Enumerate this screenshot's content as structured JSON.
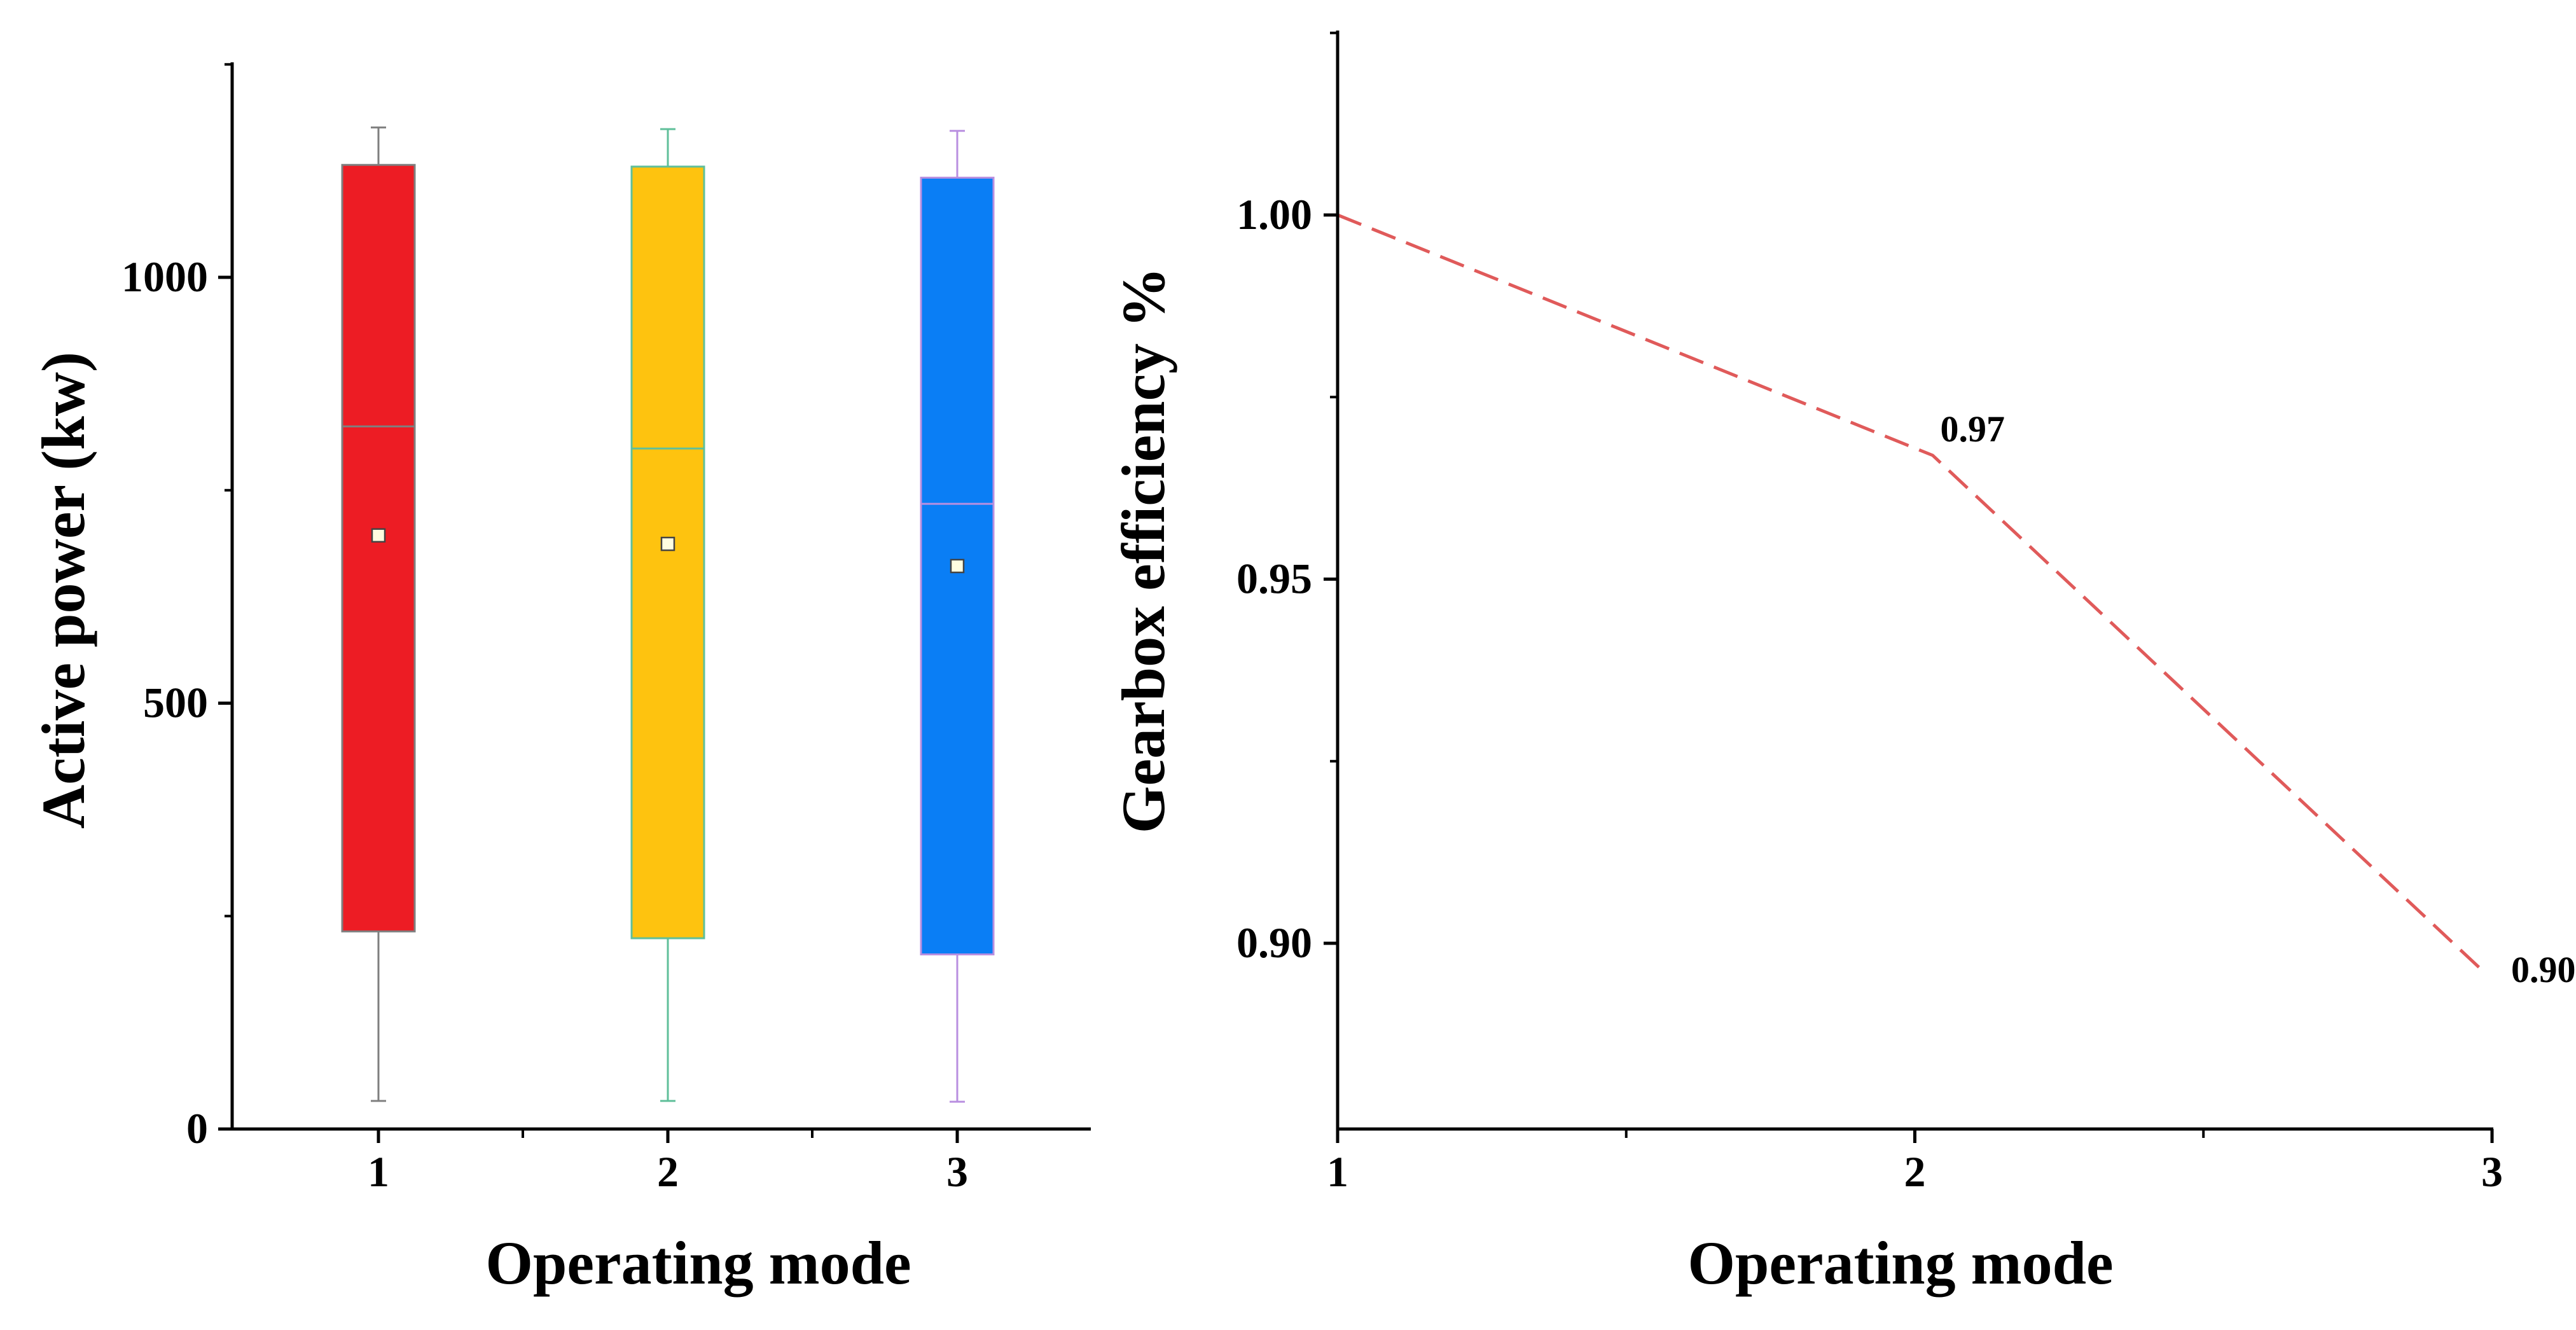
{
  "chart_data": [
    {
      "type": "box",
      "title": "",
      "xlabel": "Operating mode",
      "ylabel": "Active power (kw)",
      "categories": [
        "1",
        "2",
        "3"
      ],
      "ylim": [
        0,
        1260
      ],
      "yticks": [
        0,
        500,
        1000
      ],
      "yticklabels": [
        "0",
        "500",
        "1000"
      ],
      "boxes": [
        {
          "category": "1",
          "whisker_low": 33,
          "q1": 232,
          "median": 825,
          "q3": 1132,
          "whisker_high": 1176,
          "mean": 697,
          "fill": "#ed1c24",
          "edge": "#7f7f7f"
        },
        {
          "category": "2",
          "whisker_low": 33,
          "q1": 224,
          "median": 799,
          "q3": 1130,
          "whisker_high": 1174,
          "mean": 687,
          "fill": "#fec30f",
          "edge": "#5fbf9a"
        },
        {
          "category": "3",
          "whisker_low": 32,
          "q1": 205,
          "median": 734,
          "q3": 1117,
          "whisker_high": 1172,
          "mean": 661,
          "fill": "#0a7ef5",
          "edge": "#b98fe0"
        }
      ]
    },
    {
      "type": "line",
      "title": "",
      "xlabel": "Operating mode",
      "ylabel": "Gearbox efficiency %",
      "x": [
        1,
        2,
        3
      ],
      "xlim": [
        1,
        3
      ],
      "xticklabels": [
        "1",
        "2",
        "3"
      ],
      "ylim": [
        0.875,
        1.025
      ],
      "yticks": [
        0.9,
        0.95,
        1.0
      ],
      "yticklabels": [
        "0.90",
        "0.95",
        "1.00"
      ],
      "series": [
        {
          "name": "Gearbox efficiency",
          "values": [
            1.0,
            0.967,
            0.896
          ],
          "color": "#e05a5a",
          "style": "dashed"
        }
      ],
      "data_labels": [
        {
          "x": 2,
          "y": 0.967,
          "text": "0.97"
        },
        {
          "x": 3,
          "y": 0.896,
          "text": "0.90"
        }
      ]
    }
  ]
}
